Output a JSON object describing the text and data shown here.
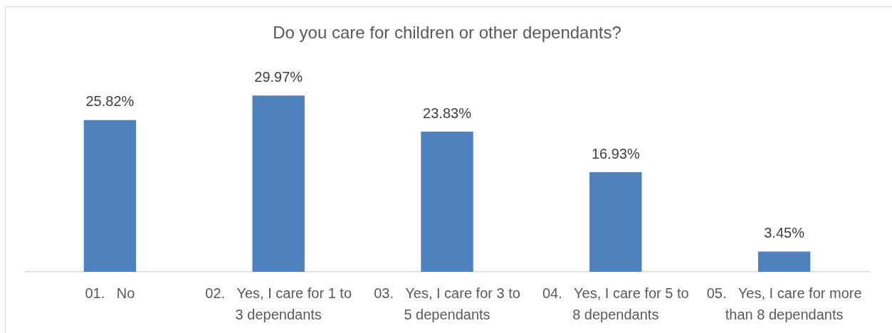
{
  "chart_data": {
    "type": "bar",
    "title": "Do you care for children or other dependants?",
    "categories": [
      "01.   No",
      "02.   Yes, I care for 1 to 3 dependants",
      "03.   Yes, I care for 3 to 5 dependants",
      "04.   Yes, I care for 5 to 8 dependants",
      "05.   Yes, I care for more than 8 dependants"
    ],
    "values": [
      25.82,
      29.97,
      23.83,
      16.93,
      3.45
    ],
    "value_labels": [
      "25.82%",
      "29.97%",
      "23.83%",
      "16.93%",
      "3.45%"
    ],
    "color": "#4f81bd"
  }
}
